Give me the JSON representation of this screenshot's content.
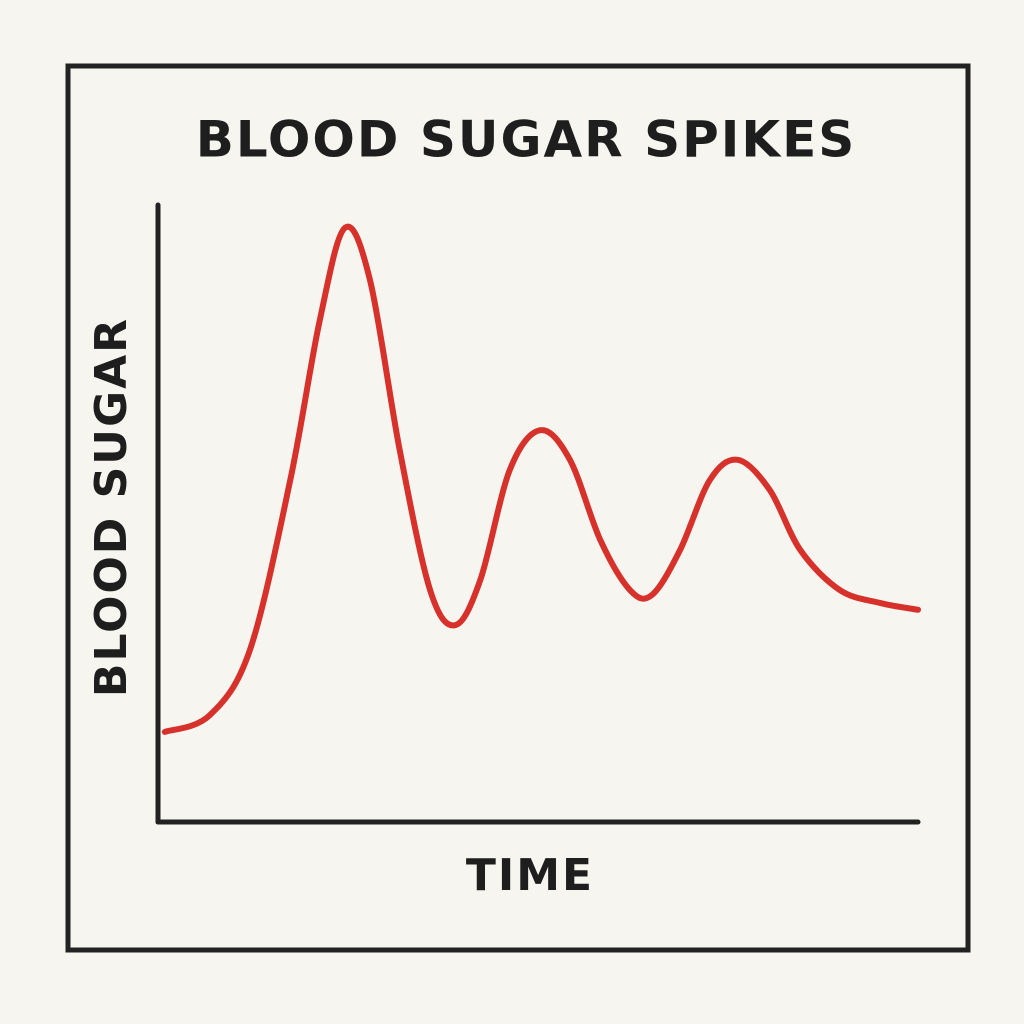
{
  "chart_data": {
    "type": "line",
    "title": "BLOOD SUGAR SPIKES",
    "x_label": "TIME",
    "y_label": "BLOOD SUGAR",
    "x": [
      0.9,
      6.8,
      12.1,
      17.4,
      21.3,
      24.6,
      27.9,
      31.8,
      35.8,
      39.1,
      42.4,
      46.3,
      50.3,
      54.2,
      58.2,
      62.1,
      65.0,
      68.7,
      72.6,
      76.3,
      80.5,
      84.5,
      89.7,
      95.0,
      100
    ],
    "series": [
      {
        "color": "#d6322b",
        "values": [
          14.6,
          17.3,
          27.9,
          55.4,
          81.4,
          96.3,
          87.8,
          60.3,
          37.6,
          31.9,
          39.2,
          57.1,
          63.5,
          58.7,
          45.7,
          37.6,
          36.8,
          44.1,
          55.4,
          58.7,
          53.8,
          44.1,
          37.6,
          35.5,
          34.4
        ]
      }
    ],
    "xlim": [
      0,
      100
    ],
    "ylim": [
      0,
      100
    ]
  }
}
